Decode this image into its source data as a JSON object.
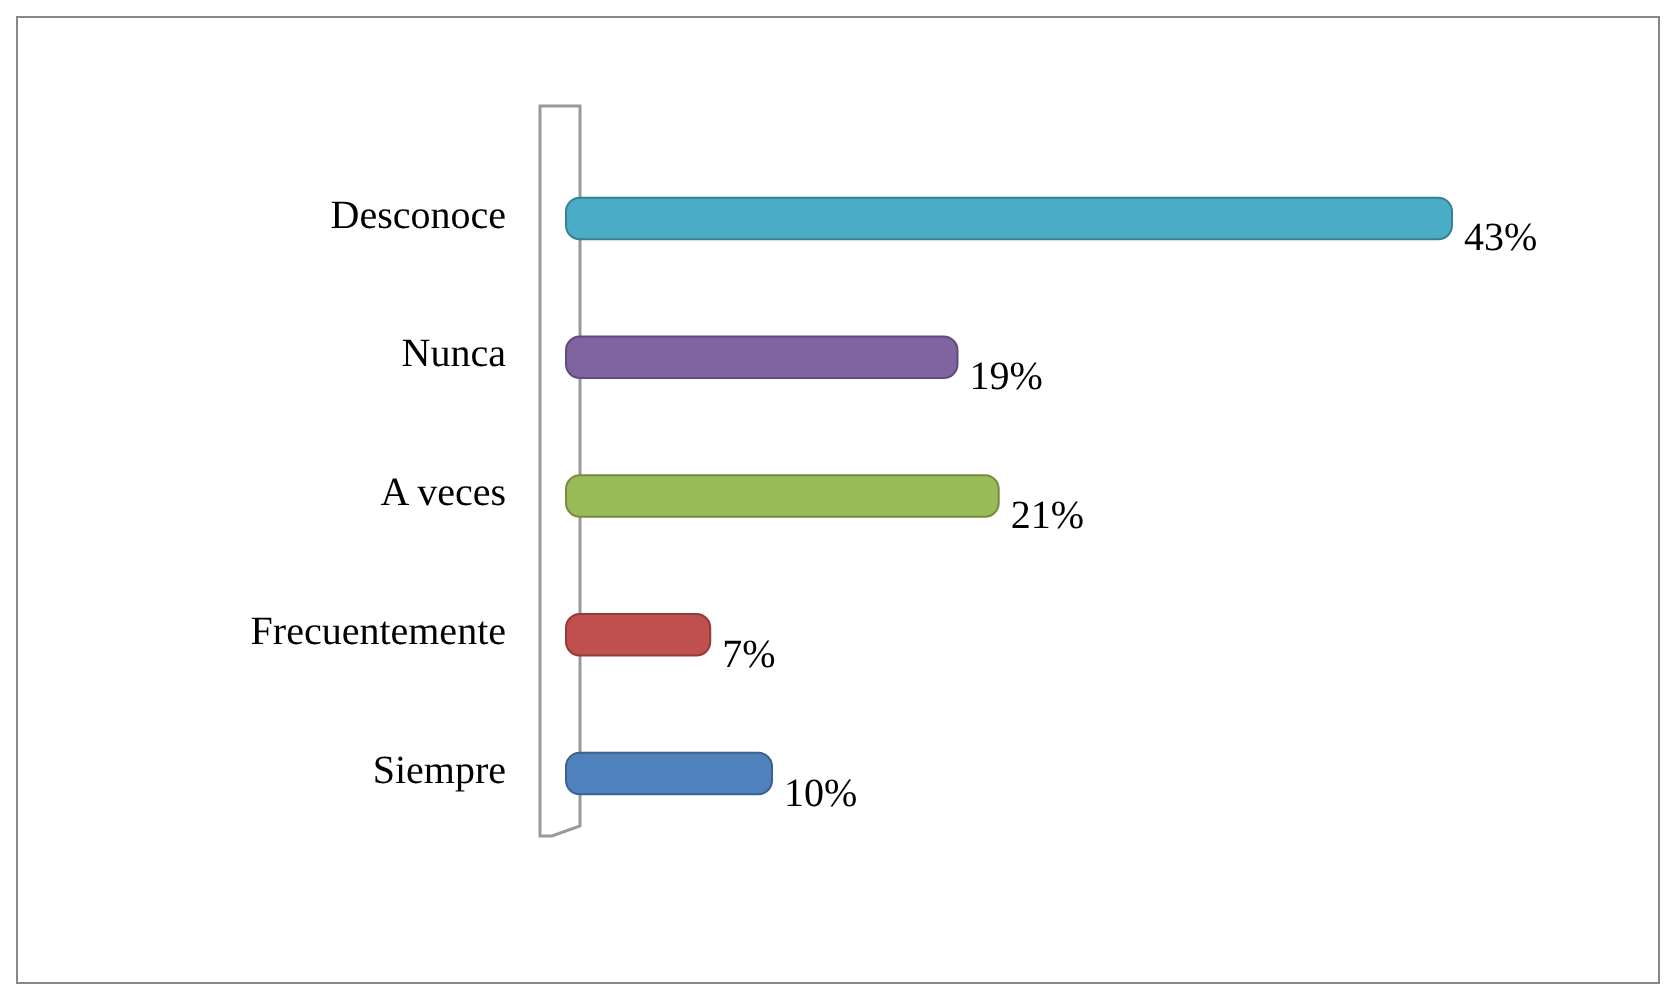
{
  "chart_data": {
    "type": "bar",
    "orientation": "horizontal",
    "categories": [
      "Desconoce",
      "Nunca",
      "A veces",
      "Frecuentemente",
      "Siempre"
    ],
    "values": [
      43,
      19,
      21,
      7,
      10
    ],
    "colors": [
      "#4bacc6",
      "#8064a2",
      "#9bbb59",
      "#c0504d",
      "#4f81bd"
    ],
    "value_labels": [
      "43%",
      "19%",
      "21%",
      "7%",
      "10%"
    ],
    "relative": false
  }
}
